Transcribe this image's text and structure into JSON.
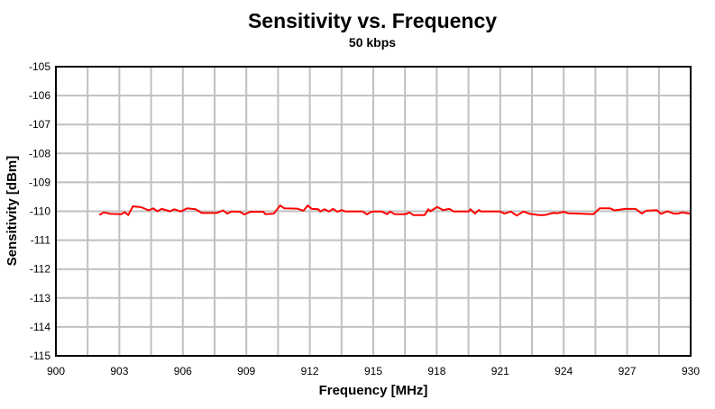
{
  "chart_data": {
    "type": "line",
    "title": "Sensitivity vs. Frequency",
    "subtitle": "50 kbps",
    "xlabel": "Frequency [MHz]",
    "ylabel": "Sensitivity [dBm]",
    "xlim": [
      900,
      930
    ],
    "ylim": [
      -115,
      -105
    ],
    "xticks": [
      900,
      903,
      906,
      909,
      912,
      915,
      918,
      921,
      924,
      927,
      930
    ],
    "yticks": [
      -105,
      -106,
      -107,
      -108,
      -109,
      -110,
      -111,
      -112,
      -113,
      -114,
      -115
    ],
    "x_grid_step": 1.5,
    "grid": true,
    "line_color": "#ff0000",
    "series": [
      {
        "x": [
          902.07,
          902.26,
          902.6,
          903.1,
          903.25,
          903.42,
          903.64,
          904.03,
          904.39,
          904.6,
          904.8,
          905.0,
          905.4,
          905.6,
          905.9,
          906.2,
          906.6,
          906.9,
          907.6,
          907.9,
          908.1,
          908.3,
          908.7,
          908.9,
          909.2,
          909.8,
          909.9,
          910.3,
          910.6,
          910.8,
          911.4,
          911.7,
          911.9,
          912.1,
          912.4,
          912.5,
          912.7,
          912.9,
          913.1,
          913.3,
          913.5,
          913.7,
          914.5,
          914.7,
          914.9,
          915.1,
          915.4,
          915.65,
          915.8,
          916.0,
          916.53,
          916.7,
          916.89,
          917.43,
          917.6,
          917.7,
          918.02,
          918.3,
          918.6,
          918.8,
          919.5,
          919.6,
          919.8,
          920.0,
          920.1,
          921.0,
          921.2,
          921.5,
          921.78,
          922.1,
          922.4,
          922.85,
          923.1,
          923.5,
          923.7,
          924.0,
          924.2,
          925.4,
          925.7,
          926.2,
          926.4,
          926.9,
          927.4,
          927.7,
          927.9,
          928.4,
          928.6,
          928.9,
          929.2,
          929.4,
          929.6,
          929.95
        ],
        "y": [
          -110.12,
          -110.04,
          -110.09,
          -110.1,
          -110.03,
          -110.13,
          -109.83,
          -109.86,
          -109.97,
          -109.9,
          -110.0,
          -109.92,
          -110.0,
          -109.93,
          -110.01,
          -109.9,
          -109.93,
          -110.06,
          -110.06,
          -109.97,
          -110.08,
          -110.01,
          -110.02,
          -110.11,
          -110.02,
          -110.02,
          -110.1,
          -110.08,
          -109.8,
          -109.9,
          -109.91,
          -109.98,
          -109.8,
          -109.92,
          -109.93,
          -110.01,
          -109.93,
          -110.01,
          -109.92,
          -110.02,
          -109.96,
          -110.01,
          -110.01,
          -110.11,
          -110.02,
          -110.01,
          -110.01,
          -110.1,
          -110.01,
          -110.1,
          -110.1,
          -110.04,
          -110.13,
          -110.13,
          -109.93,
          -110.0,
          -109.85,
          -109.96,
          -109.92,
          -110.01,
          -110.01,
          -109.93,
          -110.08,
          -109.96,
          -110.01,
          -110.01,
          -110.08,
          -110.01,
          -110.15,
          -110.01,
          -110.09,
          -110.13,
          -110.13,
          -110.06,
          -110.07,
          -110.02,
          -110.07,
          -110.1,
          -109.9,
          -109.9,
          -109.97,
          -109.92,
          -109.92,
          -110.08,
          -109.98,
          -109.96,
          -110.09,
          -110.0,
          -110.08,
          -110.08,
          -110.04,
          -110.08
        ]
      }
    ]
  }
}
